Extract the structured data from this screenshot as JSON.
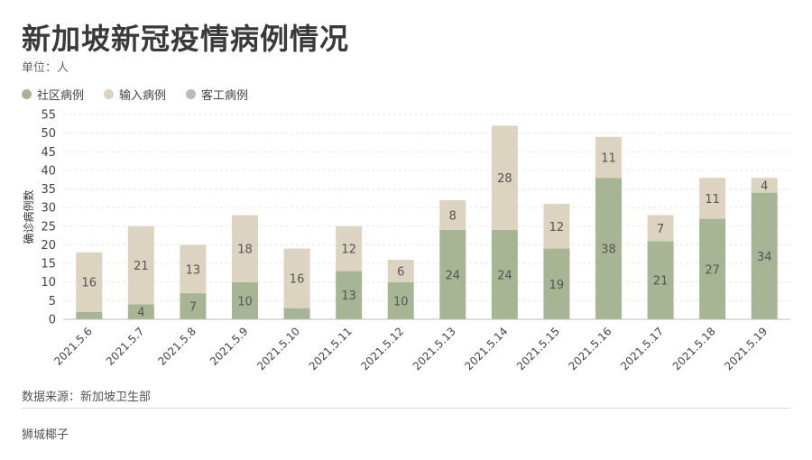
{
  "header": {
    "title": "新加坡新冠疫情病例情况",
    "unit_label": "单位：人"
  },
  "legend": [
    {
      "label": "社区病例",
      "color": "#a7b595"
    },
    {
      "label": "输入病例",
      "color": "#dcd3c1"
    },
    {
      "label": "客工病例",
      "color": "#b3bbc6"
    }
  ],
  "chart_data": {
    "type": "bar",
    "stacked": true,
    "title": "新加坡新冠疫情病例情况",
    "xlabel": "",
    "ylabel": "确诊病例数",
    "ylim": [
      0,
      55
    ],
    "yticks": [
      0,
      5,
      10,
      15,
      20,
      25,
      30,
      35,
      40,
      45,
      50,
      55
    ],
    "grid": true,
    "categories": [
      "2021.5.6",
      "2021.5.7",
      "2021.5.8",
      "2021.5.9",
      "2021.5.10",
      "2021.5.11",
      "2021.5.12",
      "2021.5.13",
      "2021.5.14",
      "2021.5.15",
      "2021.5.16",
      "2021.5.17",
      "2021.5.18",
      "2021.5.19"
    ],
    "series": [
      {
        "name": "社区病例",
        "color": "#a7b595",
        "values": [
          2,
          4,
          7,
          10,
          3,
          13,
          10,
          24,
          24,
          19,
          38,
          21,
          27,
          34
        ],
        "labels": [
          "",
          "4",
          "7",
          "10",
          "",
          "13",
          "10",
          "24",
          "24",
          "19",
          "38",
          "21",
          "27",
          "34"
        ]
      },
      {
        "name": "输入病例",
        "color": "#dcd3c1",
        "values": [
          16,
          21,
          13,
          18,
          16,
          12,
          6,
          8,
          28,
          12,
          11,
          7,
          11,
          4
        ],
        "labels": [
          "16",
          "21",
          "13",
          "18",
          "16",
          "12",
          "6",
          "8",
          "28",
          "12",
          "11",
          "7",
          "11",
          "4"
        ]
      },
      {
        "name": "客工病例",
        "color": "#b3bbc6",
        "values": [
          0,
          0,
          0,
          0,
          0,
          0,
          0,
          0,
          0,
          0,
          0,
          0,
          0,
          0
        ],
        "labels": [
          "",
          "",
          "",
          "",
          "",
          "",
          "",
          "",
          "",
          "",
          "",
          "",
          "",
          ""
        ]
      }
    ]
  },
  "footer": {
    "source": "数据来源：新加坡卫生部",
    "brand": "狮城椰子"
  }
}
